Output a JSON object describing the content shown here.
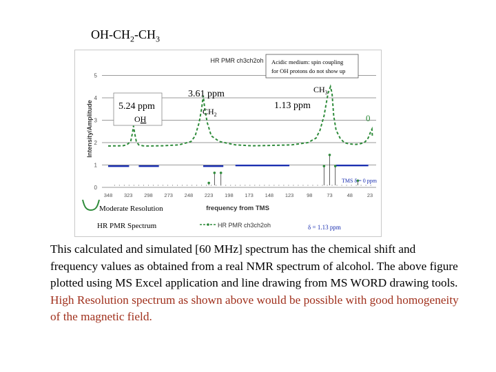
{
  "slide": {
    "title_main": "OH-CH",
    "title_sub1": "2",
    "title_mid": "-CH",
    "title_sub2": "3",
    "caption_plain": "This calculated and simulated [60 MHz] spectrum has the chemical shift and frequency values as obtained from a real NMR spectrum of alcohol. The above figure plotted using MS Excel application and line drawing from MS WORD drawing tools. ",
    "caption_highlight": "High Resolution spectrum as shown above would be possible with good homogeneity of the magnetic field."
  },
  "chart_data": {
    "type": "line",
    "title": "HR PMR ch3ch2oh",
    "xlabel": "frequency from TMS",
    "ylabel": "Intensity/Amplitude",
    "legend": {
      "label": "HR PMR ch3ch2oh",
      "placement": "bottom"
    },
    "x_ticks": [
      "348",
      "323",
      "298",
      "273",
      "248",
      "223",
      "198",
      "173",
      "148",
      "123",
      "98",
      "73",
      "48",
      "23"
    ],
    "y_ticks": [
      "0",
      "1",
      "2",
      "3",
      "4",
      "5"
    ],
    "ylim": [
      0,
      5.2
    ],
    "grid": true,
    "series": [
      {
        "name": "HR PMR ch3ch2oh",
        "color": "#2e8b3a",
        "dashed": true,
        "x": [
          348,
          330,
          325,
          320,
          318,
          316.5,
          315,
          313,
          310,
          305,
          300,
          280,
          260,
          245,
          240,
          235,
          232,
          230,
          228,
          225,
          220,
          210,
          190,
          170,
          150,
          120,
          100,
          90,
          85,
          80,
          75,
          72,
          70,
          68,
          65,
          60,
          55,
          50,
          45,
          40,
          35,
          30,
          26,
          24,
          22,
          20.5,
          20
        ],
        "y": [
          1.85,
          1.86,
          1.9,
          2.05,
          2.4,
          2.75,
          2.4,
          2.05,
          1.9,
          1.86,
          1.85,
          1.86,
          1.9,
          2.05,
          2.3,
          2.9,
          3.5,
          4.1,
          3.5,
          2.9,
          2.3,
          2.05,
          1.9,
          1.86,
          1.87,
          1.9,
          2.0,
          2.2,
          2.55,
          3.2,
          4.2,
          4.5,
          4.2,
          3.2,
          2.55,
          2.2,
          2.0,
          1.95,
          1.93,
          1.92,
          1.95,
          2.0,
          2.15,
          2.3,
          2.5,
          2.6,
          2.3
        ]
      }
    ],
    "baseline_segments": [
      {
        "x0": 348,
        "x1": 322,
        "y": 0.95,
        "color": "#1a2fb0"
      },
      {
        "x0": 310,
        "x1": 285,
        "y": 0.95,
        "color": "#1a2fb0"
      },
      {
        "x0": 230,
        "x1": 205,
        "y": 0.95,
        "color": "#1a2fb0"
      },
      {
        "x0": 190,
        "x1": 123,
        "y": 0.98,
        "color": "#1a2fb0"
      },
      {
        "x0": 65,
        "x1": 25,
        "y": 0.98,
        "color": "#1a2fb0"
      }
    ],
    "stick_peaks": [
      {
        "x": 223,
        "y": 0.2
      },
      {
        "x": 216,
        "y": 0.65
      },
      {
        "x": 208,
        "y": 0.65
      },
      {
        "x": 73,
        "y": 1.45
      },
      {
        "x": 66,
        "y": 0.95
      },
      {
        "x": 80,
        "y": 0.95
      },
      {
        "x": 38,
        "y": 0.3
      }
    ],
    "annotations": {
      "acidic_note": "Acidic medium: spin coupling for OH protons do not show up",
      "oh_shift": "5.24 ppm",
      "oh_label_pre": "O",
      "oh_label_h": "H",
      "ch2_shift": "3.61 ppm",
      "ch2_label_pre": "CH",
      "ch2_label_sub": "2",
      "ch3_shift": "1.13 ppm",
      "ch3_label_pre": "CH",
      "ch3_label_sub": "3",
      "zero_label": "0",
      "tms_label": "TMS δ = 0 ppm",
      "delta_label": "δ = 1.13 ppm",
      "moderate_resolution": "Moderate Resolution",
      "hr_spectrum": "HR PMR Spectrum"
    }
  }
}
